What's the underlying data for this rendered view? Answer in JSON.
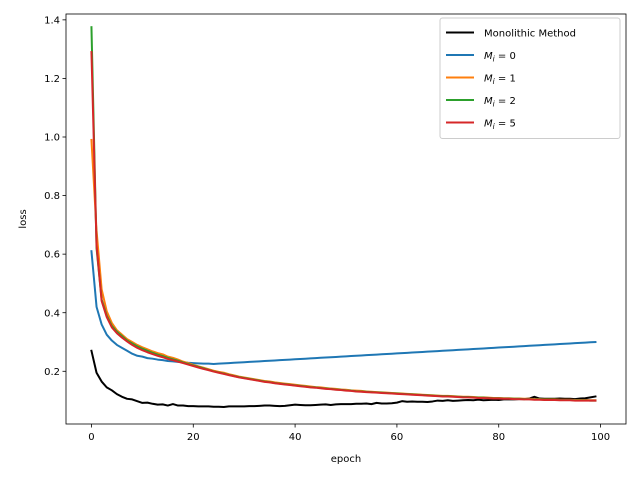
{
  "chart_data": {
    "type": "line",
    "title": "",
    "xlabel": "epoch",
    "ylabel": "loss",
    "xlim": [
      -5,
      105
    ],
    "ylim": [
      0.02,
      1.42
    ],
    "x_ticks": [
      0,
      20,
      40,
      60,
      80,
      100
    ],
    "y_ticks": [
      0.2,
      0.4,
      0.6,
      0.8,
      1.0,
      1.2,
      1.4
    ],
    "x_tick_labels": [
      "0",
      "20",
      "40",
      "60",
      "80",
      "100"
    ],
    "y_tick_labels": [
      "0.2",
      "0.4",
      "0.6",
      "0.8",
      "1.0",
      "1.2",
      "1.4"
    ],
    "grid": false,
    "legend_position": "top-right",
    "series": [
      {
        "name": "Monolithic Method",
        "label_prefix": "Monolithic Method",
        "label_sub": "",
        "label_suffix": "",
        "color": "#000000",
        "x": [
          0,
          1,
          2,
          3,
          4,
          5,
          6,
          7,
          8,
          9,
          10,
          11,
          12,
          13,
          14,
          15,
          16,
          17,
          18,
          19,
          20,
          21,
          22,
          23,
          24,
          25,
          26,
          27,
          28,
          29,
          30,
          31,
          32,
          33,
          34,
          35,
          36,
          37,
          38,
          39,
          40,
          41,
          42,
          43,
          44,
          45,
          46,
          47,
          48,
          49,
          50,
          51,
          52,
          53,
          54,
          55,
          56,
          57,
          58,
          59,
          60,
          61,
          62,
          63,
          64,
          65,
          66,
          67,
          68,
          69,
          70,
          71,
          72,
          73,
          74,
          75,
          76,
          77,
          78,
          79,
          80,
          81,
          82,
          83,
          84,
          85,
          86,
          87,
          88,
          89,
          90,
          91,
          92,
          93,
          94,
          95,
          96,
          97,
          98,
          99
        ],
        "values": [
          0.27,
          0.195,
          0.165,
          0.145,
          0.135,
          0.122,
          0.113,
          0.106,
          0.104,
          0.098,
          0.092,
          0.093,
          0.089,
          0.086,
          0.087,
          0.083,
          0.088,
          0.083,
          0.083,
          0.081,
          0.081,
          0.08,
          0.08,
          0.08,
          0.079,
          0.079,
          0.078,
          0.08,
          0.08,
          0.08,
          0.08,
          0.081,
          0.081,
          0.082,
          0.083,
          0.083,
          0.082,
          0.081,
          0.082,
          0.084,
          0.086,
          0.085,
          0.084,
          0.084,
          0.085,
          0.086,
          0.087,
          0.085,
          0.087,
          0.088,
          0.088,
          0.088,
          0.089,
          0.089,
          0.09,
          0.088,
          0.092,
          0.09,
          0.09,
          0.091,
          0.093,
          0.098,
          0.096,
          0.097,
          0.096,
          0.096,
          0.095,
          0.097,
          0.1,
          0.099,
          0.101,
          0.099,
          0.1,
          0.101,
          0.102,
          0.101,
          0.103,
          0.101,
          0.102,
          0.103,
          0.102,
          0.104,
          0.104,
          0.104,
          0.105,
          0.105,
          0.107,
          0.113,
          0.107,
          0.106,
          0.106,
          0.106,
          0.107,
          0.106,
          0.106,
          0.105,
          0.107,
          0.108,
          0.111,
          0.114
        ]
      },
      {
        "name": "M_i = 0",
        "label_prefix": "M",
        "label_sub": "i",
        "label_suffix": " = 0",
        "color": "#1f77b4",
        "x": [
          0,
          1,
          2,
          3,
          4,
          5,
          6,
          7,
          8,
          9,
          10,
          11,
          12,
          13,
          14,
          15,
          16,
          17,
          18,
          19,
          20,
          21,
          22,
          23,
          24,
          25,
          26,
          27,
          28,
          29,
          30,
          31,
          32,
          33,
          34,
          35,
          36,
          37,
          38,
          39,
          40,
          41,
          42,
          43,
          44,
          45,
          46,
          47,
          48,
          49,
          50,
          51,
          52,
          53,
          54,
          55,
          56,
          57,
          58,
          59,
          60,
          61,
          62,
          63,
          64,
          65,
          66,
          67,
          68,
          69,
          70,
          71,
          72,
          73,
          74,
          75,
          76,
          77,
          78,
          79,
          80,
          81,
          82,
          83,
          84,
          85,
          86,
          87,
          88,
          89,
          90,
          91,
          92,
          93,
          94,
          95,
          96,
          97,
          98,
          99
        ],
        "values": [
          0.61,
          0.42,
          0.36,
          0.325,
          0.305,
          0.29,
          0.28,
          0.27,
          0.26,
          0.253,
          0.25,
          0.245,
          0.243,
          0.24,
          0.238,
          0.235,
          0.234,
          0.232,
          0.231,
          0.229,
          0.228,
          0.227,
          0.226,
          0.226,
          0.225,
          0.226,
          0.227,
          0.228,
          0.229,
          0.23,
          0.231,
          0.232,
          0.233,
          0.234,
          0.235,
          0.236,
          0.237,
          0.238,
          0.239,
          0.24,
          0.241,
          0.242,
          0.243,
          0.244,
          0.245,
          0.246,
          0.247,
          0.248,
          0.249,
          0.25,
          0.251,
          0.252,
          0.253,
          0.254,
          0.255,
          0.256,
          0.257,
          0.258,
          0.259,
          0.26,
          0.261,
          0.262,
          0.263,
          0.264,
          0.265,
          0.266,
          0.267,
          0.268,
          0.269,
          0.27,
          0.271,
          0.272,
          0.273,
          0.274,
          0.275,
          0.276,
          0.277,
          0.278,
          0.279,
          0.28,
          0.281,
          0.282,
          0.283,
          0.284,
          0.285,
          0.286,
          0.287,
          0.288,
          0.289,
          0.29,
          0.291,
          0.292,
          0.293,
          0.294,
          0.295,
          0.296,
          0.297,
          0.298,
          0.299,
          0.3
        ]
      },
      {
        "name": "M_i = 1",
        "label_prefix": "M",
        "label_sub": "i",
        "label_suffix": " = 1",
        "color": "#ff7f0e",
        "x": [
          0,
          1,
          2,
          3,
          4,
          5,
          6,
          7,
          8,
          9,
          10,
          11,
          12,
          13,
          14,
          15,
          16,
          17,
          18,
          19,
          20,
          21,
          22,
          23,
          24,
          25,
          26,
          27,
          28,
          29,
          30,
          31,
          32,
          33,
          34,
          35,
          36,
          37,
          38,
          39,
          40,
          41,
          42,
          43,
          44,
          45,
          46,
          47,
          48,
          49,
          50,
          51,
          52,
          53,
          54,
          55,
          56,
          57,
          58,
          59,
          60,
          61,
          62,
          63,
          64,
          65,
          66,
          67,
          68,
          69,
          70,
          71,
          72,
          73,
          74,
          75,
          76,
          77,
          78,
          79,
          80,
          81,
          82,
          83,
          84,
          85,
          86,
          87,
          88,
          89,
          90,
          91,
          92,
          93,
          94,
          95,
          96,
          97,
          98,
          99
        ],
        "values": [
          0.99,
          0.68,
          0.48,
          0.405,
          0.365,
          0.34,
          0.325,
          0.31,
          0.3,
          0.29,
          0.282,
          0.275,
          0.268,
          0.262,
          0.258,
          0.25,
          0.246,
          0.24,
          0.233,
          0.228,
          0.222,
          0.217,
          0.212,
          0.207,
          0.202,
          0.198,
          0.195,
          0.19,
          0.186,
          0.182,
          0.179,
          0.176,
          0.173,
          0.17,
          0.167,
          0.165,
          0.162,
          0.16,
          0.158,
          0.156,
          0.154,
          0.152,
          0.15,
          0.148,
          0.146,
          0.145,
          0.143,
          0.141,
          0.14,
          0.138,
          0.137,
          0.135,
          0.134,
          0.133,
          0.131,
          0.13,
          0.129,
          0.128,
          0.127,
          0.126,
          0.125,
          0.124,
          0.123,
          0.122,
          0.121,
          0.12,
          0.119,
          0.118,
          0.117,
          0.116,
          0.116,
          0.115,
          0.114,
          0.113,
          0.113,
          0.112,
          0.111,
          0.111,
          0.11,
          0.109,
          0.109,
          0.108,
          0.108,
          0.107,
          0.107,
          0.106,
          0.106,
          0.105,
          0.105,
          0.104,
          0.104,
          0.104,
          0.103,
          0.103,
          0.103,
          0.102,
          0.102,
          0.102,
          0.101,
          0.101
        ]
      },
      {
        "name": "M_i = 2",
        "label_prefix": "M",
        "label_sub": "i",
        "label_suffix": " = 2",
        "color": "#2ca02c",
        "x": [
          0,
          1,
          2,
          3,
          4,
          5,
          6,
          7,
          8,
          9,
          10,
          11,
          12,
          13,
          14,
          15,
          16,
          17,
          18,
          19,
          20,
          21,
          22,
          23,
          24,
          25,
          26,
          27,
          28,
          29,
          30,
          31,
          32,
          33,
          34,
          35,
          36,
          37,
          38,
          39,
          40,
          41,
          42,
          43,
          44,
          45,
          46,
          47,
          48,
          49,
          50,
          51,
          52,
          53,
          54,
          55,
          56,
          57,
          58,
          59,
          60,
          61,
          62,
          63,
          64,
          65,
          66,
          67,
          68,
          69,
          70,
          71,
          72,
          73,
          74,
          75,
          76,
          77,
          78,
          79,
          80,
          81,
          82,
          83,
          84,
          85,
          86,
          87,
          88,
          89,
          90,
          91,
          92,
          93,
          94,
          95,
          96,
          97,
          98,
          99
        ],
        "values": [
          1.375,
          0.62,
          0.445,
          0.39,
          0.355,
          0.335,
          0.32,
          0.305,
          0.295,
          0.285,
          0.277,
          0.27,
          0.263,
          0.257,
          0.252,
          0.246,
          0.241,
          0.236,
          0.23,
          0.225,
          0.22,
          0.215,
          0.21,
          0.205,
          0.2,
          0.196,
          0.192,
          0.188,
          0.184,
          0.18,
          0.177,
          0.174,
          0.171,
          0.168,
          0.165,
          0.163,
          0.16,
          0.158,
          0.156,
          0.154,
          0.152,
          0.15,
          0.148,
          0.146,
          0.145,
          0.143,
          0.141,
          0.14,
          0.138,
          0.137,
          0.135,
          0.134,
          0.132,
          0.131,
          0.13,
          0.129,
          0.128,
          0.127,
          0.126,
          0.125,
          0.124,
          0.123,
          0.122,
          0.121,
          0.12,
          0.119,
          0.118,
          0.117,
          0.116,
          0.115,
          0.115,
          0.114,
          0.113,
          0.112,
          0.112,
          0.111,
          0.11,
          0.11,
          0.109,
          0.108,
          0.108,
          0.107,
          0.107,
          0.106,
          0.106,
          0.105,
          0.105,
          0.104,
          0.104,
          0.103,
          0.103,
          0.103,
          0.102,
          0.102,
          0.102,
          0.101,
          0.101,
          0.101,
          0.1,
          0.1
        ]
      },
      {
        "name": "M_i = 5",
        "label_prefix": "M",
        "label_sub": "i",
        "label_suffix": " = 5",
        "color": "#d62728",
        "x": [
          0,
          1,
          2,
          3,
          4,
          5,
          6,
          7,
          8,
          9,
          10,
          11,
          12,
          13,
          14,
          15,
          16,
          17,
          18,
          19,
          20,
          21,
          22,
          23,
          24,
          25,
          26,
          27,
          28,
          29,
          30,
          31,
          32,
          33,
          34,
          35,
          36,
          37,
          38,
          39,
          40,
          41,
          42,
          43,
          44,
          45,
          46,
          47,
          48,
          49,
          50,
          51,
          52,
          53,
          54,
          55,
          56,
          57,
          58,
          59,
          60,
          61,
          62,
          63,
          64,
          65,
          66,
          67,
          68,
          69,
          70,
          71,
          72,
          73,
          74,
          75,
          76,
          77,
          78,
          79,
          80,
          81,
          82,
          83,
          84,
          85,
          86,
          87,
          88,
          89,
          90,
          91,
          92,
          93,
          94,
          95,
          96,
          97,
          98,
          99
        ],
        "values": [
          1.29,
          0.63,
          0.44,
          0.385,
          0.35,
          0.33,
          0.315,
          0.302,
          0.29,
          0.28,
          0.272,
          0.265,
          0.259,
          0.253,
          0.248,
          0.242,
          0.238,
          0.233,
          0.228,
          0.223,
          0.218,
          0.213,
          0.208,
          0.204,
          0.199,
          0.195,
          0.191,
          0.187,
          0.183,
          0.179,
          0.176,
          0.173,
          0.17,
          0.167,
          0.164,
          0.162,
          0.159,
          0.157,
          0.155,
          0.153,
          0.151,
          0.149,
          0.147,
          0.145,
          0.144,
          0.142,
          0.14,
          0.139,
          0.137,
          0.136,
          0.134,
          0.133,
          0.131,
          0.13,
          0.129,
          0.128,
          0.127,
          0.126,
          0.125,
          0.124,
          0.123,
          0.122,
          0.121,
          0.12,
          0.119,
          0.118,
          0.117,
          0.116,
          0.115,
          0.114,
          0.114,
          0.113,
          0.112,
          0.111,
          0.111,
          0.11,
          0.109,
          0.109,
          0.108,
          0.107,
          0.107,
          0.106,
          0.106,
          0.105,
          0.105,
          0.104,
          0.104,
          0.103,
          0.103,
          0.102,
          0.102,
          0.102,
          0.101,
          0.101,
          0.101,
          0.1,
          0.1,
          0.1,
          0.1,
          0.1
        ]
      }
    ]
  }
}
